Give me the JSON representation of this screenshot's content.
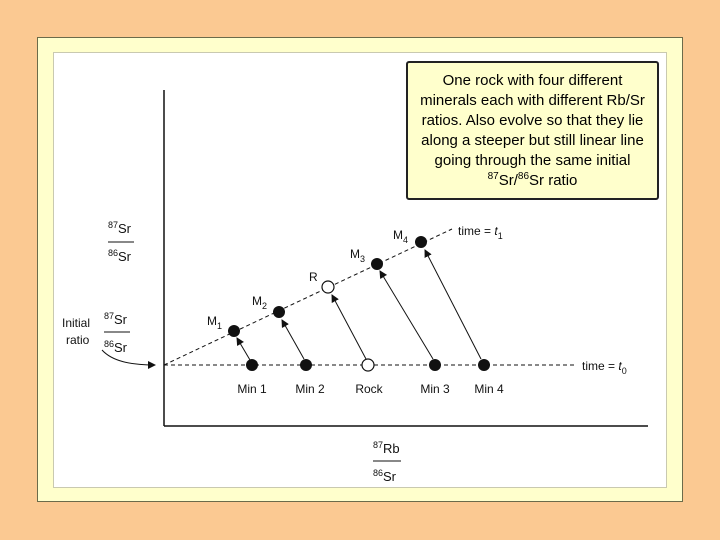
{
  "callout": {
    "text_before": "One rock with four different minerals each with different Rb/Sr ratios. Also evolve so that they lie along a steeper but still linear line going through the same initial ",
    "ratio_num_sup": "87",
    "ratio_num": "Sr/",
    "ratio_den_sup": "86",
    "ratio_den": "Sr ratio"
  },
  "y_axis_label": {
    "num_sup": "87",
    "num": "Sr",
    "den_sup": "86",
    "den": "Sr"
  },
  "x_axis_label": {
    "num_sup": "87",
    "num": "Rb",
    "den_sup": "86",
    "den": "Sr"
  },
  "initial_ratio": {
    "word1": "Initial",
    "word2": "ratio",
    "num_sup": "87",
    "num": "Sr",
    "den_sup": "86",
    "den": "Sr"
  },
  "isochrons": {
    "t0": {
      "prefix": "time = ",
      "var": "t",
      "sub": "0"
    },
    "t1": {
      "prefix": "time = ",
      "var": "t",
      "sub": "1"
    }
  },
  "initial_points": [
    {
      "label": "Min 1",
      "filled": true
    },
    {
      "label": "Min 2",
      "filled": true
    },
    {
      "label": "Rock",
      "filled": false
    },
    {
      "label": "Min 3",
      "filled": true
    },
    {
      "label": "Min 4",
      "filled": true
    }
  ],
  "evolved_points": [
    {
      "label": "M",
      "sub": "1",
      "filled": true
    },
    {
      "label": "M",
      "sub": "2",
      "filled": true
    },
    {
      "label": "R",
      "sub": "",
      "filled": false
    },
    {
      "label": "M",
      "sub": "3",
      "filled": true
    },
    {
      "label": "M",
      "sub": "4",
      "filled": true
    }
  ],
  "colors": {
    "background": "#FBC992",
    "frame": "#FFFFCC",
    "figure": "#FFFFFF",
    "ink": "#111111"
  }
}
